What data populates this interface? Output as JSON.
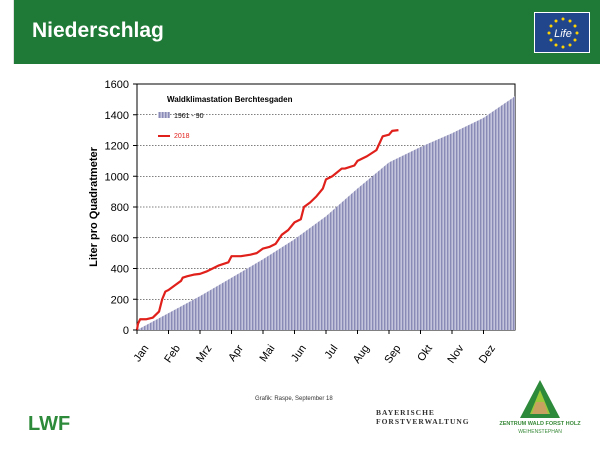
{
  "header": {
    "title": "Niederschlag"
  },
  "chart_data": {
    "type": "area",
    "title": "Waldklimastation Berchtesgaden",
    "xlabel": "",
    "ylabel": "Liter pro Quadratmeter",
    "ylim": [
      0,
      1600
    ],
    "yticks": [
      0,
      200,
      400,
      600,
      800,
      1000,
      1200,
      1400,
      1600
    ],
    "months": [
      "Jan",
      "Feb",
      "Mrz",
      "Apr",
      "Mai",
      "Jun",
      "Jul",
      "Aug",
      "Sep",
      "Okt",
      "Nov",
      "Dez"
    ],
    "grid": true,
    "legend_position": "top-left",
    "series": [
      {
        "name": "1961 - 90",
        "style": "area",
        "color": "#8f8fbf",
        "x": [
          0,
          1,
          2,
          3,
          4,
          5,
          6,
          7,
          8,
          9,
          10,
          11,
          12
        ],
        "y": [
          0,
          110,
          220,
          340,
          460,
          590,
          740,
          920,
          1090,
          1190,
          1280,
          1380,
          1520
        ]
      },
      {
        "name": "2018",
        "style": "line",
        "color": "#e0201b",
        "x": [
          0,
          0.03,
          0.1,
          0.3,
          0.5,
          0.7,
          0.8,
          0.9,
          1.0,
          1.2,
          1.4,
          1.45,
          1.6,
          1.8,
          2.0,
          2.2,
          2.4,
          2.6,
          2.9,
          3.0,
          3.3,
          3.6,
          3.8,
          4.0,
          4.2,
          4.4,
          4.6,
          4.8,
          5.0,
          5.2,
          5.3,
          5.5,
          5.7,
          5.9,
          6.0,
          6.2,
          6.5,
          6.6,
          6.9,
          7.0,
          7.3,
          7.6,
          7.8,
          8.0,
          8.1,
          8.3
        ],
        "y": [
          0,
          40,
          70,
          70,
          80,
          120,
          200,
          250,
          260,
          290,
          320,
          340,
          350,
          360,
          365,
          380,
          400,
          420,
          440,
          480,
          480,
          490,
          500,
          530,
          540,
          560,
          620,
          650,
          700,
          720,
          800,
          830,
          870,
          920,
          980,
          1000,
          1050,
          1050,
          1070,
          1100,
          1130,
          1170,
          1260,
          1270,
          1295,
          1300
        ]
      }
    ]
  },
  "footer": {
    "credit": "Grafik: Raspe, September 18",
    "lwf": "LWF",
    "bay_line1": "BAYERISCHE",
    "bay_line2": "FORSTVERWALTUNG",
    "zentrum_line1": "ZENTRUM WALD FORST HOLZ",
    "zentrum_line2": "WEIHENSTEPHAN",
    "eu_logo_text": "Life"
  }
}
